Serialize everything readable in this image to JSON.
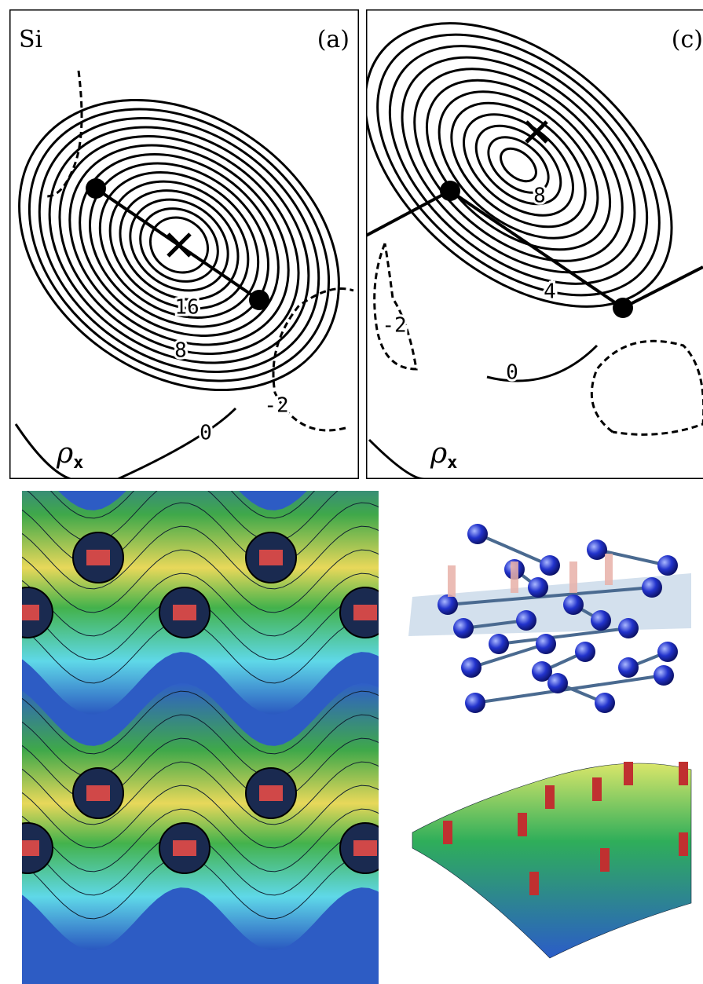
{
  "panels": [
    {
      "element": "Si",
      "label": "(a)",
      "contour_labels": [
        "16",
        "8",
        "0",
        "-2"
      ],
      "quantity": {
        "symbol": "ρ",
        "subscript": "x"
      }
    },
    {
      "label": "(c)",
      "contour_labels": [
        "8",
        "4",
        "-2",
        "0"
      ],
      "quantity": {
        "symbol": "ρ",
        "subscript": "x"
      }
    }
  ]
}
